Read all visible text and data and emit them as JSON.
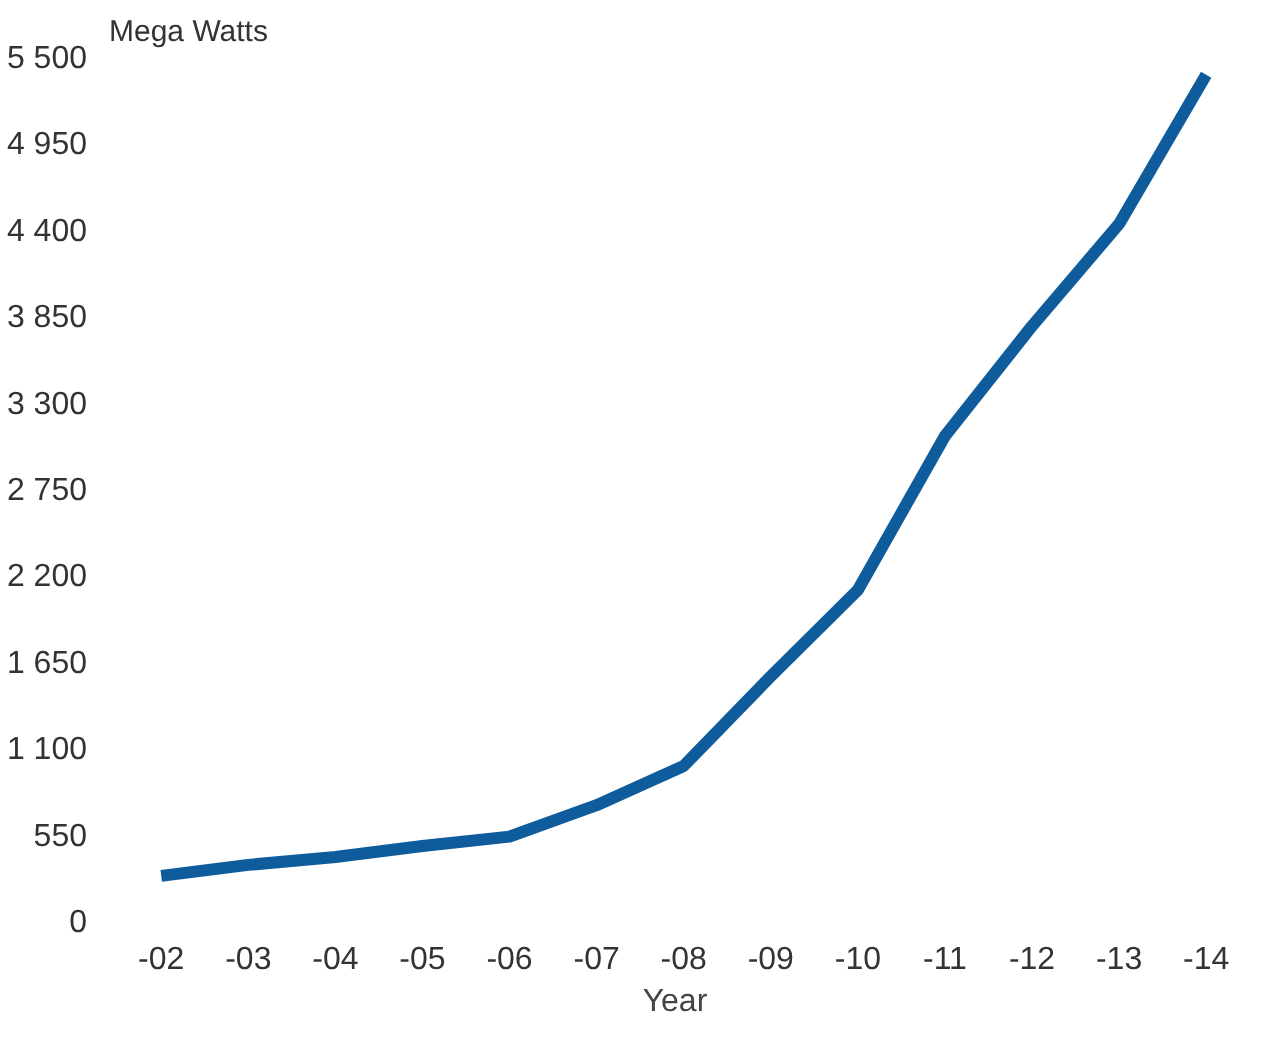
{
  "chart_data": {
    "type": "line",
    "ylabel": "Mega Watts",
    "xlabel": "Year",
    "categories": [
      "-02",
      "-03",
      "-04",
      "-05",
      "-06",
      "-07",
      "-08",
      "-09",
      "-10",
      "-11",
      "-12",
      "-13",
      "-14"
    ],
    "series": [
      {
        "color": "#0f5c9c",
        "values": [
          300,
          370,
          420,
          490,
          550,
          750,
          1000,
          1570,
          2120,
          3100,
          3800,
          4450,
          5400
        ]
      }
    ],
    "ylim": [
      0,
      5500
    ],
    "yticks": [
      0,
      550,
      {
        "value": 1100,
        "label": "1 100"
      },
      {
        "value": 1650,
        "label": "1 650"
      },
      {
        "value": 2200,
        "label": "2 200"
      },
      {
        "value": 2750,
        "label": "2 750"
      },
      {
        "value": 3300,
        "label": "3 300"
      },
      {
        "value": 3850,
        "label": "3 850"
      },
      {
        "value": 4400,
        "label": "4 400"
      },
      {
        "value": 4950,
        "label": "4 950"
      },
      {
        "value": 5500,
        "label": "5 500"
      }
    ],
    "grid": false,
    "marker": "none",
    "line_style": "solid"
  }
}
